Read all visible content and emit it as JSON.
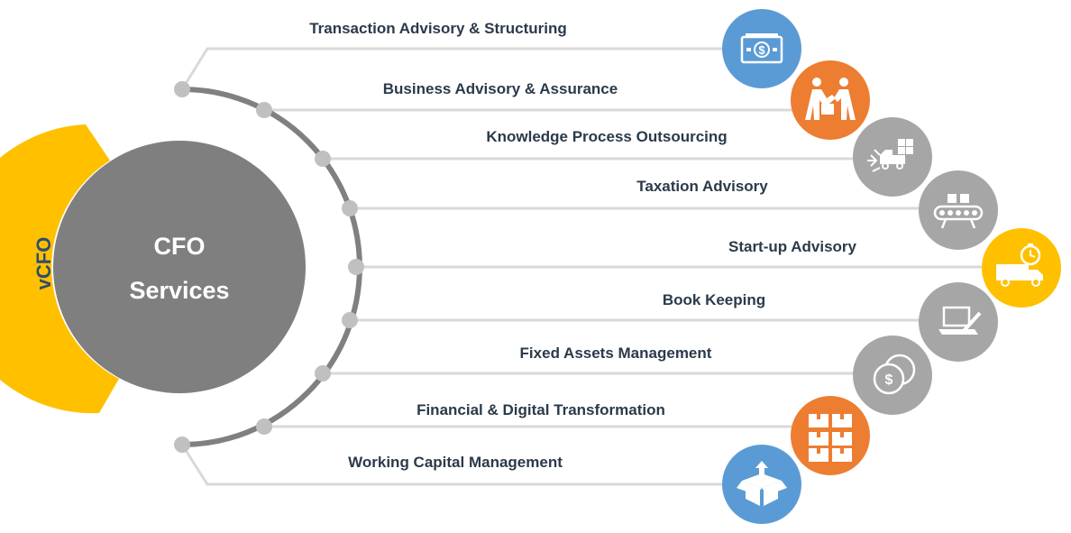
{
  "center": {
    "title_line1": "CFO",
    "title_line2": "Services",
    "band_label": "vCFO"
  },
  "services": [
    {
      "label": "Transaction Advisory & Structuring",
      "color": "#5b9bd5",
      "icon": "money-icon"
    },
    {
      "label": "Business Advisory & Assurance",
      "color": "#ed7d31",
      "icon": "handover-icon"
    },
    {
      "label": "Knowledge Process Outsourcing",
      "color": "#a6a6a6",
      "icon": "logistics-icon"
    },
    {
      "label": "Taxation Advisory",
      "color": "#a6a6a6",
      "icon": "conveyor-icon"
    },
    {
      "label": "Start-up Advisory",
      "color": "#ffc000",
      "icon": "delivery-timer-icon"
    },
    {
      "label": "Book Keeping",
      "color": "#a6a6a6",
      "icon": "laptop-icon"
    },
    {
      "label": "Fixed Assets Management",
      "color": "#a6a6a6",
      "icon": "coins-icon"
    },
    {
      "label": "Financial & Digital Transformation",
      "color": "#ed7d31",
      "icon": "warehouse-boxes-icon"
    },
    {
      "label": "Working Capital Management",
      "color": "#5b9bd5",
      "icon": "open-box-icon"
    }
  ],
  "colors": {
    "center_circle": "#7f7f7f",
    "band": "#ffc000",
    "arc": "#808080",
    "connector": "#d9d9d9",
    "node": "#c0c0c0",
    "label_text": "#2b3a4a"
  }
}
